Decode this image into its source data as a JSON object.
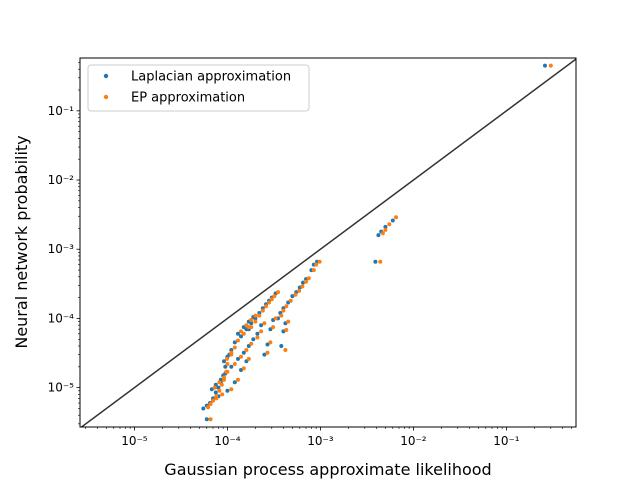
{
  "chart_data": {
    "type": "scatter",
    "xlabel": "Gaussian process approximate likelihood",
    "ylabel": "Neural network probability",
    "xscale": "log",
    "yscale": "log",
    "xlim": [
      2.6e-06,
      0.56
    ],
    "ylim": [
      2.7e-06,
      0.58
    ],
    "x_ticks": [
      {
        "value": 1e-05,
        "label": "10⁻⁵"
      },
      {
        "value": 0.0001,
        "label": "10⁻⁴"
      },
      {
        "value": 0.001,
        "label": "10⁻³"
      },
      {
        "value": 0.01,
        "label": "10⁻²"
      },
      {
        "value": 0.1,
        "label": "10⁻¹"
      }
    ],
    "y_ticks": [
      {
        "value": 1e-05,
        "label": "10⁻⁵"
      },
      {
        "value": 0.0001,
        "label": "10⁻⁴"
      },
      {
        "value": 0.001,
        "label": "10⁻³"
      },
      {
        "value": 0.01,
        "label": "10⁻²"
      },
      {
        "value": 0.1,
        "label": "10⁻¹"
      }
    ],
    "legend_position": "top-left",
    "grid": false,
    "reference_line": {
      "type": "identity",
      "color": "#333333"
    },
    "series": [
      {
        "name": "Laplacian approximation",
        "color": "#1f77b4",
        "points": [
          [
            0.26,
            0.45
          ],
          [
            0.006,
            0.0026
          ],
          [
            0.005,
            0.0021
          ],
          [
            0.0045,
            0.0018
          ],
          [
            0.0042,
            0.0016
          ],
          [
            0.0039,
            0.00066
          ],
          [
            0.00092,
            0.00066
          ],
          [
            0.00085,
            0.0006
          ],
          [
            0.0008,
            0.0005
          ],
          [
            0.0007,
            0.00037
          ],
          [
            0.00065,
            0.00033
          ],
          [
            0.0006,
            0.00028
          ],
          [
            0.00055,
            0.00024
          ],
          [
            0.0005,
            0.00021
          ],
          [
            0.00045,
            0.00017
          ],
          [
            0.0004,
            0.00014
          ],
          [
            0.00037,
            0.00012
          ],
          [
            0.00035,
            0.0001
          ],
          [
            0.00042,
            8.5e-05
          ],
          [
            0.0004,
            6.5e-05
          ],
          [
            0.00038,
            4e-05
          ],
          [
            0.00033,
            0.00023
          ],
          [
            0.0003,
            0.0002
          ],
          [
            0.00028,
            0.00018
          ],
          [
            0.00026,
            0.00016
          ],
          [
            0.00024,
            0.00014
          ],
          [
            0.00022,
            0.00012
          ],
          [
            0.0002,
            0.0001
          ],
          [
            0.00018,
            8.5e-05
          ],
          [
            0.00016,
            7e-05
          ],
          [
            0.00014,
            5.5e-05
          ],
          [
            0.00012,
            4.5e-05
          ],
          [
            0.00011,
            3.5e-05
          ],
          [
            0.0001,
            2.8e-05
          ],
          [
            9.5e-05,
            2e-05
          ],
          [
            9e-05,
            1.5e-05
          ],
          [
            8.5e-05,
            1.2e-05
          ],
          [
            8e-05,
            1e-05
          ],
          [
            7.5e-05,
            8.5e-06
          ],
          [
            7e-05,
            7e-06
          ],
          [
            6.5e-05,
            6e-06
          ],
          [
            6e-05,
            5.5e-06
          ],
          [
            5.5e-05,
            5e-06
          ],
          [
            6e-05,
            3.5e-06
          ],
          [
            0.00019,
            0.000105
          ],
          [
            0.00017,
            9e-05
          ],
          [
            0.00015,
            7.5e-05
          ],
          [
            0.00013,
            6e-05
          ],
          [
            0.00021,
            6e-05
          ],
          [
            0.00019,
            5e-05
          ],
          [
            0.00017,
            4e-05
          ],
          [
            0.00015,
            3.2e-05
          ],
          [
            0.00013,
            2.6e-05
          ],
          [
            0.00011,
            2e-05
          ],
          [
            9.5e-05,
            1.6e-05
          ],
          [
            8.5e-05,
            1.3e-05
          ],
          [
            7.5e-05,
            1.1e-05
          ],
          [
            6.8e-05,
            9.5e-06
          ],
          [
            0.00012,
            1.2e-05
          ],
          [
            0.0001,
            9e-06
          ],
          [
            8e-05,
            7.5e-06
          ],
          [
            7e-05,
            6.5e-06
          ],
          [
            0.00014,
            1.8e-05
          ],
          [
            0.00016,
            2.4e-05
          ],
          [
            0.00025,
            3e-05
          ],
          [
            0.00027,
            4.2e-05
          ],
          [
            0.00029,
            7e-05
          ],
          [
            0.00031,
            9.5e-05
          ],
          [
            0.00023,
            8e-05
          ],
          [
            0.00017,
            7e-05
          ],
          [
            0.000105,
            3e-05
          ],
          [
            9.2e-05,
            2.4e-05
          ]
        ]
      },
      {
        "name": "EP approximation",
        "color": "#ff7f0e",
        "points": [
          [
            0.3,
            0.45
          ],
          [
            0.0065,
            0.0029
          ],
          [
            0.0055,
            0.0023
          ],
          [
            0.005,
            0.0019
          ],
          [
            0.0047,
            0.0017
          ],
          [
            0.0044,
            0.00066
          ],
          [
            0.00098,
            0.00066
          ],
          [
            0.0009,
            0.0006
          ],
          [
            0.00085,
            0.0005
          ],
          [
            0.00075,
            0.00038
          ],
          [
            0.0007,
            0.00034
          ],
          [
            0.00064,
            0.00029
          ],
          [
            0.00059,
            0.00025
          ],
          [
            0.00054,
            0.00022
          ],
          [
            0.00048,
            0.00018
          ],
          [
            0.00043,
            0.00015
          ],
          [
            0.0004,
            0.00013
          ],
          [
            0.00038,
            0.00011
          ],
          [
            0.00045,
            9e-05
          ],
          [
            0.00043,
            6.8e-05
          ],
          [
            0.00042,
            3.5e-05
          ],
          [
            0.00035,
            0.00024
          ],
          [
            0.00032,
            0.00021
          ],
          [
            0.0003,
            0.00019
          ],
          [
            0.00028,
            0.00017
          ],
          [
            0.00026,
            0.00015
          ],
          [
            0.00024,
            0.00013
          ],
          [
            0.00022,
            0.00011
          ],
          [
            0.0002,
            9e-05
          ],
          [
            0.00017,
            7.5e-05
          ],
          [
            0.00015,
            6e-05
          ],
          [
            0.00013,
            4.8e-05
          ],
          [
            0.00012,
            3.8e-05
          ],
          [
            0.00011,
            3e-05
          ],
          [
            0.0001,
            2.2e-05
          ],
          [
            9.7e-05,
            1.7e-05
          ],
          [
            9.2e-05,
            1.3e-05
          ],
          [
            8.7e-05,
            1.1e-05
          ],
          [
            8.2e-05,
            9e-06
          ],
          [
            7.6e-05,
            7.5e-06
          ],
          [
            7e-05,
            6.5e-06
          ],
          [
            6.6e-05,
            5.8e-06
          ],
          [
            6.2e-05,
            5.2e-06
          ],
          [
            6.6e-05,
            3.5e-06
          ],
          [
            0.0002,
            0.00011
          ],
          [
            0.00018,
            9.5e-05
          ],
          [
            0.00016,
            8e-05
          ],
          [
            0.00014,
            6.5e-05
          ],
          [
            0.00023,
            6.5e-05
          ],
          [
            0.00021,
            5.3e-05
          ],
          [
            0.00018,
            4.3e-05
          ],
          [
            0.00016,
            3.5e-05
          ],
          [
            0.00014,
            2.8e-05
          ],
          [
            0.00012,
            2.2e-05
          ],
          [
            0.0001,
            1.7e-05
          ],
          [
            9.2e-05,
            1.4e-05
          ],
          [
            8.2e-05,
            1.2e-05
          ],
          [
            7.3e-05,
            1e-05
          ],
          [
            0.00013,
            1.3e-05
          ],
          [
            0.00011,
            9.5e-06
          ],
          [
            8.8e-05,
            8e-06
          ],
          [
            7.6e-05,
            7e-06
          ],
          [
            0.00015,
            1.9e-05
          ],
          [
            0.00017,
            2.6e-05
          ],
          [
            0.00027,
            3.2e-05
          ],
          [
            0.00029,
            4.5e-05
          ],
          [
            0.00031,
            7.5e-05
          ],
          [
            0.00033,
            0.0001
          ],
          [
            0.00025,
            8.5e-05
          ],
          [
            0.00018,
            7.5e-05
          ],
          [
            0.00011,
            3.2e-05
          ],
          [
            9.9e-05,
            2.6e-05
          ]
        ]
      }
    ]
  }
}
